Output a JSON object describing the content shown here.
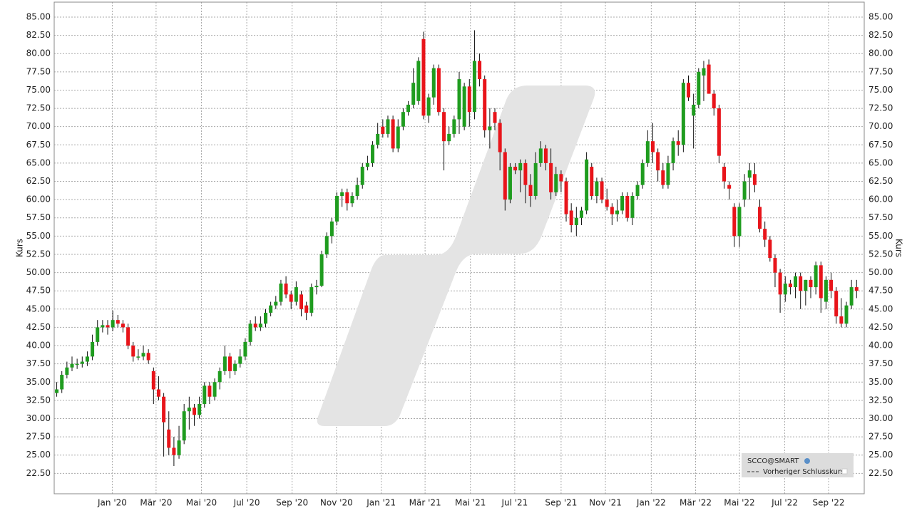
{
  "chart_data": {
    "type": "candlestick",
    "ylabel": "Kurs",
    "ylim": [
      19.7,
      87.05
    ],
    "yticks": [
      {
        "value": 22.5,
        "label": "22.50"
      },
      {
        "value": 25,
        "label": "25.00"
      },
      {
        "value": 27.5,
        "label": "27.50"
      },
      {
        "value": 30,
        "label": "30.00"
      },
      {
        "value": 32.5,
        "label": "32.50"
      },
      {
        "value": 35,
        "label": "35.00"
      },
      {
        "value": 37.5,
        "label": "37.50"
      },
      {
        "value": 40,
        "label": "40.00"
      },
      {
        "value": 42.5,
        "label": "42.50"
      },
      {
        "value": 45,
        "label": "45.00"
      },
      {
        "value": 47.5,
        "label": "47.50"
      },
      {
        "value": 50,
        "label": "50.00"
      },
      {
        "value": 52.5,
        "label": "52.50"
      },
      {
        "value": 55,
        "label": "55.00"
      },
      {
        "value": 57.5,
        "label": "57.50"
      },
      {
        "value": 60,
        "label": "60.00"
      },
      {
        "value": 62.5,
        "label": "62.50"
      },
      {
        "value": 65,
        "label": "65.00"
      },
      {
        "value": 67.5,
        "label": "67.50"
      },
      {
        "value": 70,
        "label": "70.00"
      },
      {
        "value": 72.5,
        "label": "72.50"
      },
      {
        "value": 75,
        "label": "75.00"
      },
      {
        "value": 77.5,
        "label": "77.50"
      },
      {
        "value": 80,
        "label": "80.00"
      },
      {
        "value": 82.5,
        "label": "82.50"
      },
      {
        "value": 85,
        "label": "85.00"
      }
    ],
    "xlim": [
      -0.5,
      158.5
    ],
    "xticks": [
      {
        "value": 10.9,
        "label": "Jan '20"
      },
      {
        "value": 19.5,
        "label": "Mär '20"
      },
      {
        "value": 28.4,
        "label": "Mai '20"
      },
      {
        "value": 37.3,
        "label": "Jul '20"
      },
      {
        "value": 46.2,
        "label": "Sep '20"
      },
      {
        "value": 54.9,
        "label": "Nov '20"
      },
      {
        "value": 63.7,
        "label": "Jan '21"
      },
      {
        "value": 72.3,
        "label": "Mär '21"
      },
      {
        "value": 81.2,
        "label": "Mai '21"
      },
      {
        "value": 89.9,
        "label": "Jul '21"
      },
      {
        "value": 99,
        "label": "Sep '21"
      },
      {
        "value": 107.7,
        "label": "Nov '21"
      },
      {
        "value": 116.7,
        "label": "Jan '22"
      },
      {
        "value": 125.4,
        "label": "Mär '22"
      },
      {
        "value": 134,
        "label": "Mai '22"
      },
      {
        "value": 142.9,
        "label": "Jul '22"
      },
      {
        "value": 151.5,
        "label": "Sep '22"
      }
    ],
    "grid": true,
    "up_color": "#1f9c1f",
    "down_color": "#e8141a",
    "legend": "bottom-right",
    "legend_extra": "Vorheriger Schlusskurs",
    "series": [
      {
        "name": "SCCO@SMART",
        "values": [
          [
            33.5,
            35,
            33,
            34
          ],
          [
            34,
            36.5,
            33.5,
            36
          ],
          [
            36,
            37.8,
            35.5,
            37
          ],
          [
            37,
            38.5,
            36.5,
            37.5
          ],
          [
            37.5,
            38.2,
            36.8,
            37.5
          ],
          [
            37.5,
            38.5,
            37,
            37.8
          ],
          [
            37.8,
            39.2,
            37.2,
            38.5
          ],
          [
            38.5,
            41.5,
            38,
            40.5
          ],
          [
            40.5,
            43.5,
            40,
            42.5
          ],
          [
            42.5,
            43.5,
            41.8,
            42.8
          ],
          [
            42.8,
            43.5,
            41.5,
            42.5
          ],
          [
            42.5,
            44.8,
            42,
            43.5
          ],
          [
            43.5,
            44.2,
            42.5,
            43
          ],
          [
            43,
            43.5,
            41.8,
            42.5
          ],
          [
            42.5,
            43,
            39.5,
            40
          ],
          [
            40,
            40.5,
            37.8,
            38.5
          ],
          [
            38.5,
            39.5,
            38,
            38.5
          ],
          [
            38.5,
            40,
            38,
            39
          ],
          [
            39,
            39.5,
            37.5,
            38
          ],
          [
            36.5,
            37,
            32,
            34
          ],
          [
            34,
            35.8,
            32.5,
            33
          ],
          [
            33,
            33.5,
            24.8,
            29.5
          ],
          [
            28.5,
            31,
            25,
            26
          ],
          [
            26,
            27.5,
            23.5,
            25
          ],
          [
            25,
            29,
            24.5,
            27
          ],
          [
            27,
            32,
            26.5,
            31
          ],
          [
            31,
            33,
            28.5,
            31.5
          ],
          [
            31.5,
            32,
            29,
            30.5
          ],
          [
            30.5,
            33,
            30,
            32
          ],
          [
            32,
            35,
            31.5,
            34.5
          ],
          [
            34.5,
            35,
            32,
            33
          ],
          [
            33,
            35.5,
            32.5,
            35
          ],
          [
            35,
            37,
            34,
            36.5
          ],
          [
            36.5,
            40,
            36,
            38.5
          ],
          [
            38.5,
            39,
            35.5,
            36.5
          ],
          [
            36.5,
            38,
            36,
            37.5
          ],
          [
            37.5,
            39.5,
            37,
            38.5
          ],
          [
            38.5,
            41,
            38,
            40.5
          ],
          [
            40.5,
            43.5,
            40,
            43
          ],
          [
            43,
            44,
            42,
            42.5
          ],
          [
            42.5,
            44,
            42,
            43
          ],
          [
            43,
            45,
            42.5,
            44.5
          ],
          [
            44.5,
            46,
            44,
            45.5
          ],
          [
            45.5,
            46.8,
            45,
            46
          ],
          [
            46,
            49,
            45.5,
            48.5
          ],
          [
            48.5,
            49.5,
            46.5,
            47
          ],
          [
            47,
            47.5,
            45,
            46
          ],
          [
            46,
            48.8,
            45.5,
            48
          ],
          [
            47,
            47.5,
            44,
            45
          ],
          [
            45.5,
            46,
            43.5,
            44.5
          ],
          [
            44.5,
            48.5,
            44,
            48
          ],
          [
            48,
            49,
            47,
            48.2
          ],
          [
            48.2,
            53,
            48,
            52.5
          ],
          [
            52.5,
            55.5,
            52,
            55
          ],
          [
            55,
            57.5,
            54,
            57
          ],
          [
            57,
            61,
            56.5,
            60.5
          ],
          [
            60.5,
            61.5,
            59,
            61
          ],
          [
            61,
            61.5,
            58.5,
            59.5
          ],
          [
            59.5,
            61,
            59,
            60.5
          ],
          [
            60.5,
            63,
            60,
            62
          ],
          [
            62,
            65,
            61.5,
            64.5
          ],
          [
            64.5,
            66,
            64,
            65
          ],
          [
            65,
            68,
            64.5,
            67.5
          ],
          [
            67.5,
            70.5,
            67,
            69
          ],
          [
            70,
            71,
            68.5,
            69
          ],
          [
            69,
            71.5,
            68.5,
            71
          ],
          [
            71,
            71.5,
            66.5,
            67
          ],
          [
            67,
            71,
            66.5,
            70
          ],
          [
            70,
            72.5,
            69.5,
            72
          ],
          [
            72,
            73.5,
            71.5,
            73
          ],
          [
            73,
            78,
            72.5,
            76
          ],
          [
            73.5,
            79.5,
            73,
            79
          ],
          [
            82,
            83,
            71,
            71.5
          ],
          [
            71.5,
            74.5,
            70.5,
            74
          ],
          [
            74,
            78.5,
            73,
            78
          ],
          [
            78,
            78.5,
            71.5,
            72
          ],
          [
            72,
            72.5,
            64,
            68
          ],
          [
            68,
            70,
            67.5,
            69
          ],
          [
            69,
            71.5,
            68.5,
            71
          ],
          [
            71,
            77.5,
            69,
            76.5
          ],
          [
            70,
            76,
            69.5,
            75.5
          ],
          [
            75.5,
            76.5,
            70,
            72
          ],
          [
            72,
            83.2,
            71,
            79
          ],
          [
            79,
            80,
            75.5,
            76.5
          ],
          [
            76.5,
            77,
            68.5,
            69.5
          ],
          [
            69.5,
            72.5,
            67,
            70
          ],
          [
            72,
            72.5,
            69.5,
            70.5
          ],
          [
            70.5,
            71,
            64,
            66.5
          ],
          [
            66.5,
            67,
            58.5,
            60
          ],
          [
            60,
            65,
            59.5,
            64.5
          ],
          [
            64.5,
            65,
            63.5,
            64
          ],
          [
            64,
            65.5,
            61,
            65
          ],
          [
            65,
            65.5,
            59.5,
            62
          ],
          [
            62,
            63.5,
            59,
            60.5
          ],
          [
            60.5,
            66.5,
            60,
            65
          ],
          [
            65,
            68,
            64.5,
            67
          ],
          [
            67,
            67.5,
            64,
            65
          ],
          [
            65,
            67,
            60,
            61
          ],
          [
            61,
            64.5,
            60.5,
            63.5
          ],
          [
            63.5,
            64,
            61,
            62.5
          ],
          [
            62.5,
            63,
            57,
            58
          ],
          [
            58.5,
            59.5,
            55.5,
            56.5
          ],
          [
            56.5,
            59,
            55,
            57.5
          ],
          [
            57.5,
            59,
            56.5,
            58.5
          ],
          [
            58.5,
            66.5,
            58,
            65.5
          ],
          [
            64.5,
            65,
            60,
            60.5
          ],
          [
            60.5,
            63,
            59.5,
            62.5
          ],
          [
            62.5,
            63,
            59.5,
            60
          ],
          [
            60,
            61.5,
            58.5,
            59
          ],
          [
            59,
            59.5,
            56.5,
            58
          ],
          [
            58,
            60,
            57,
            58.5
          ],
          [
            58.5,
            61,
            58,
            60.5
          ],
          [
            60.5,
            61,
            57,
            57.5
          ],
          [
            57.5,
            61,
            56.5,
            60.5
          ],
          [
            60.5,
            62.5,
            60,
            62
          ],
          [
            62,
            65.5,
            61.5,
            65
          ],
          [
            65,
            69.5,
            64.5,
            68
          ],
          [
            68,
            70.5,
            65,
            66.5
          ],
          [
            66.5,
            67,
            62.5,
            64
          ],
          [
            64,
            65,
            61.5,
            62
          ],
          [
            62,
            66,
            61.5,
            65
          ],
          [
            65,
            68.5,
            64,
            68
          ],
          [
            68,
            69.5,
            66,
            67.5
          ],
          [
            67.5,
            76.5,
            66.5,
            76
          ],
          [
            76,
            77,
            73.5,
            74
          ],
          [
            71.5,
            74.5,
            67,
            73
          ],
          [
            73,
            78,
            72.5,
            77.5
          ],
          [
            77,
            79,
            73.5,
            78
          ],
          [
            78.5,
            79.2,
            74.5,
            74.5
          ],
          [
            74.5,
            75,
            71.5,
            72.5
          ],
          [
            72.5,
            73,
            65,
            66
          ],
          [
            64.5,
            65,
            61.5,
            62.5
          ],
          [
            62,
            62.5,
            60,
            61.5
          ],
          [
            59,
            59.5,
            53.5,
            55
          ],
          [
            55,
            59.5,
            53.5,
            59
          ],
          [
            60,
            63.5,
            59,
            62.5
          ],
          [
            63,
            65,
            60,
            64
          ],
          [
            63.5,
            65,
            61,
            62
          ],
          [
            59,
            60,
            55.5,
            56
          ],
          [
            56,
            57,
            53.5,
            54.5
          ],
          [
            54.5,
            55,
            51.5,
            52
          ],
          [
            52,
            52.5,
            48,
            50
          ],
          [
            50,
            50.5,
            44.5,
            47
          ],
          [
            47,
            49.5,
            46,
            48.5
          ],
          [
            48.5,
            49,
            47,
            48
          ],
          [
            48,
            50,
            46.5,
            49.5
          ],
          [
            49.5,
            50,
            45,
            47.5
          ],
          [
            47.5,
            49,
            45.5,
            49
          ],
          [
            49,
            49.5,
            46.5,
            48
          ],
          [
            48,
            51.5,
            47,
            51
          ],
          [
            51,
            51.5,
            44.5,
            46.5
          ],
          [
            46,
            49.5,
            45,
            49
          ],
          [
            49,
            50,
            46.5,
            47.5
          ],
          [
            47.5,
            48,
            43,
            44
          ],
          [
            44,
            46.5,
            42.5,
            43
          ],
          [
            43,
            46,
            42.5,
            45.5
          ],
          [
            45.5,
            49,
            45,
            48
          ],
          [
            48,
            49,
            46.5,
            47.5
          ]
        ]
      }
    ]
  }
}
